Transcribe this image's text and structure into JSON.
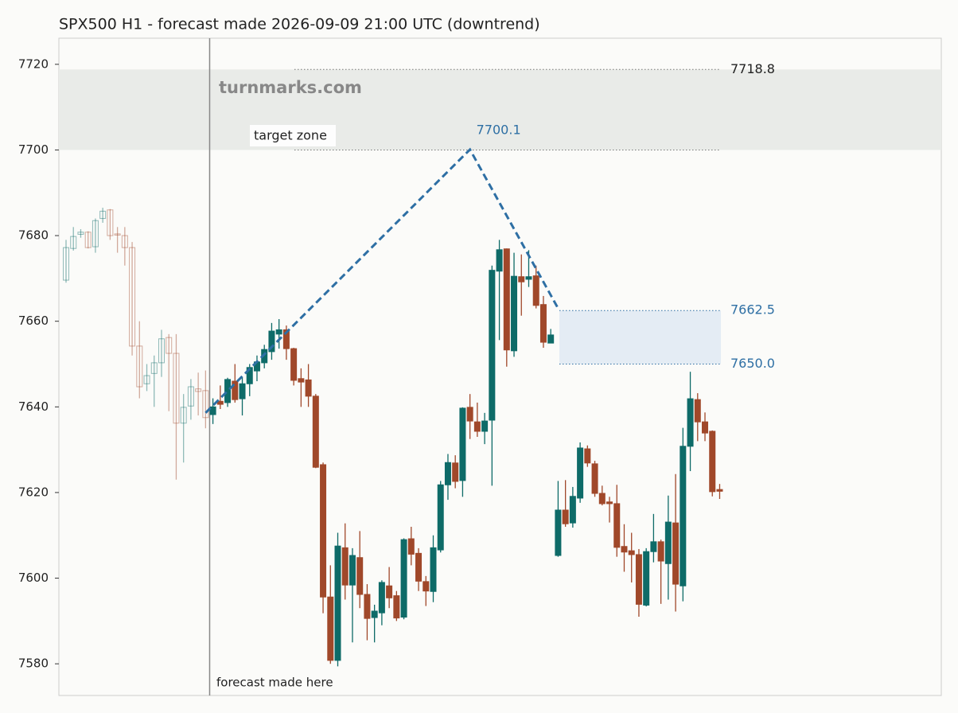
{
  "chart_data": {
    "type": "candlestick",
    "title": "SPX500 H1 - forecast made 2026-09-09 21:00 UTC (downtrend)",
    "ylim": [
      7572.6,
      7726.1
    ],
    "yticks": [
      7580,
      7600,
      7620,
      7640,
      7660,
      7680,
      7700,
      7720
    ],
    "up_color": "#0e6b68",
    "down_color": "#a0482a",
    "open": [
      7669.6,
      7677,
      7680.3,
      7680.8,
      7677.4,
      7684,
      7686,
      7680.4,
      7680,
      7677.2,
      7654.2,
      7645.4,
      7647.8,
      7650.3,
      7656.2,
      7652.5,
      7636.2,
      7640.2,
      7644.2,
      7643.8,
      7638.2,
      7641.3,
      7641,
      7646,
      7641.9,
      7645.4,
      7648.4,
      7650.3,
      7652.9,
      7657,
      7658,
      7653.6,
      7646.6,
      7646.3,
      7642.5,
      7626.5,
      7595.6,
      7580.8,
      7607.1,
      7598.4,
      7604.8,
      7596.2,
      7590.8,
      7591.9,
      7598.2,
      7595.9,
      7590.9,
      7609.2,
      7605.8,
      7599.2,
      7596.9,
      7606.6,
      7621.8,
      7626.9,
      7622.8,
      7639.9,
      7636.5,
      7634.3,
      7636.9,
      7671.7,
      7676.9,
      7653.1,
      7670.4,
      7669.8,
      7670.6,
      7663.9,
      7654.9,
      7605.3,
      7615.9,
      7612.9,
      7618.7,
      7630.2,
      7626.7,
      7619.8,
      7617.8,
      7617.4,
      7607.4,
      7606.4,
      7605.5,
      7593.7,
      7606.2,
      7608.5,
      7603.4,
      7612.9,
      7598.2,
      7630.8,
      7641.7,
      7636.5,
      7634.3,
      7620.7
    ],
    "high": [
      7679,
      7682,
      7681.5,
      7681,
      7684,
      7686.5,
      7686.2,
      7682,
      7682,
      7678.5,
      7660,
      7650,
      7652,
      7658,
      7657,
      7657,
      7643,
      7646.5,
      7648,
      7648.5,
      7642,
      7645,
      7646.8,
      7650,
      7647,
      7650,
      7652,
      7654.5,
      7659.6,
      7660.5,
      7659,
      7653.8,
      7649,
      7650,
      7643,
      7627,
      7603,
      7610.6,
      7612.8,
      7607,
      7611,
      7598.6,
      7593.8,
      7599.5,
      7602.6,
      7597,
      7609.3,
      7612,
      7607,
      7600.5,
      7610,
      7622.7,
      7629,
      7628.7,
      7639.9,
      7643,
      7641,
      7638.6,
      7673,
      7679,
      7677,
      7676,
      7675.6,
      7676.6,
      7673,
      7665.9,
      7658.2,
      7622.7,
      7622.9,
      7621.3,
      7631.7,
      7631,
      7627.4,
      7621.6,
      7619,
      7621.8,
      7612.6,
      7610.6,
      7606.8,
      7607,
      7615,
      7609,
      7619.3,
      7624.3,
      7635.1,
      7648.2,
      7643.2,
      7638.7,
      7634.5,
      7622
    ],
    "low": [
      7669,
      7676.5,
      7679.5,
      7677,
      7676,
      7683,
      7679,
      7676,
      7673,
      7652,
      7642,
      7643.7,
      7640,
      7647,
      7639,
      7623,
      7627,
      7637,
      7638,
      7635,
      7636,
      7639.5,
      7640,
      7641,
      7638,
      7642.5,
      7646,
      7649,
      7651,
      7653.6,
      7651,
      7645,
      7640,
      7640,
      7625.7,
      7591.8,
      7580,
      7579.4,
      7595,
      7585,
      7593,
      7585.5,
      7585,
      7589,
      7593,
      7590,
      7590.4,
      7603,
      7597,
      7593.5,
      7594.4,
      7606,
      7618.3,
      7621,
      7619,
      7632.5,
      7633,
      7631.3,
      7621.6,
      7655.6,
      7649.4,
      7651.7,
      7661.3,
      7668,
      7663,
      7653.8,
      7655,
      7605,
      7612,
      7611.8,
      7617.6,
      7626,
      7619,
      7617,
      7613,
      7605,
      7601.5,
      7599,
      7591,
      7593.4,
      7603.7,
      7594,
      7595,
      7592.2,
      7594.6,
      7625,
      7632,
      7632,
      7619.1,
      7618.5
    ],
    "close": [
      7677.2,
      7679.8,
      7680.8,
      7677.2,
      7683.5,
      7685.7,
      7680,
      7680.2,
      7677.2,
      7654.2,
      7644.7,
      7647.3,
      7650.3,
      7655.9,
      7652.5,
      7636.2,
      7639.9,
      7644.7,
      7643.6,
      7637.5,
      7640,
      7640.6,
      7646.4,
      7641.7,
      7645.4,
      7649.2,
      7650.5,
      7653.4,
      7657.7,
      7658,
      7653.6,
      7646.2,
      7645.8,
      7642.5,
      7625.9,
      7595.6,
      7580.8,
      7607.5,
      7598.4,
      7605.3,
      7596.2,
      7590.6,
      7592.3,
      7599,
      7595.4,
      7590.7,
      7609,
      7605.6,
      7599.3,
      7597,
      7607.1,
      7621.8,
      7627,
      7622.6,
      7639.7,
      7636.7,
      7634.3,
      7636.7,
      7671.9,
      7676.7,
      7653.3,
      7670.5,
      7669.2,
      7670.4,
      7663.7,
      7655.1,
      7656.8,
      7615.9,
      7612.7,
      7619.1,
      7630.4,
      7626.9,
      7619.8,
      7617.4,
      7617.4,
      7607.2,
      7606.1,
      7605.5,
      7593.9,
      7606.2,
      7608.5,
      7604,
      7613.1,
      7598.6,
      7630.8,
      7641.9,
      7636.5,
      7633.9,
      7620.2,
      7620.3
    ],
    "forecast": {
      "x": [
        19,
        55,
        67
      ],
      "values": [
        7638.6,
        7700.1,
        7663
      ],
      "color": "#2e6fa4"
    },
    "target_zone": {
      "label": "target zone",
      "range": [
        7700,
        7718.8
      ]
    },
    "forecast_zone": {
      "range": [
        {
          "value": 7650,
          "label": "7650.0"
        },
        7662.5
      ]
    },
    "annotation": "forecast made here",
    "watermark": "turnmarks.com"
  }
}
